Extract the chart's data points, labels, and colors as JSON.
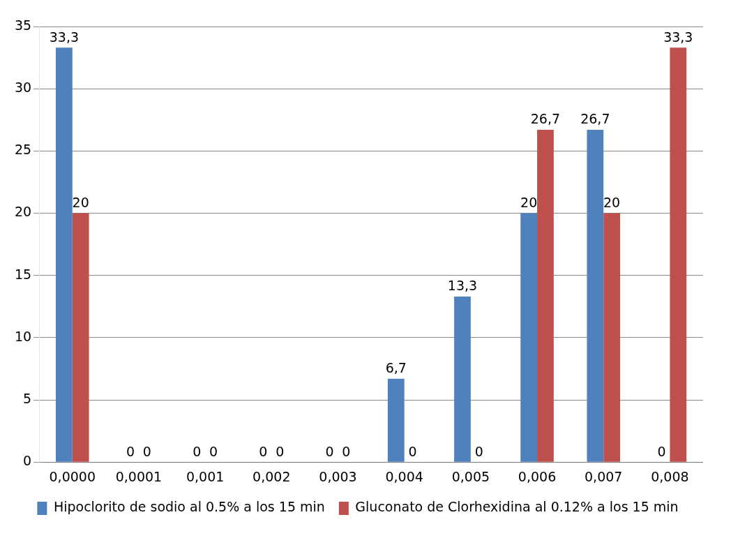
{
  "chart_data": {
    "type": "bar",
    "categories": [
      "0,0000",
      "0,0001",
      "0,001",
      "0,002",
      "0,003",
      "0,004",
      "0,005",
      "0,006",
      "0,007",
      "0,008"
    ],
    "series": [
      {
        "name": "Hipoclorito de sodio al 0.5% a los 15 min",
        "color": "#4f81bd",
        "values": [
          33.3,
          0,
          0,
          0,
          0,
          6.7,
          13.3,
          20,
          26.7,
          0
        ],
        "value_labels": [
          "33,3",
          "0",
          "0",
          "0",
          "0",
          "6,7",
          "13,3",
          "20",
          "26,7",
          "0"
        ]
      },
      {
        "name": "Gluconato de Clorhexidina al 0.12% a los 15 min",
        "color": "#c0504d",
        "values": [
          20,
          0,
          0,
          0,
          0,
          0,
          0,
          26.7,
          20,
          33.3
        ],
        "value_labels": [
          "20",
          "0",
          "0",
          "0",
          "0",
          "0",
          "0",
          "26,7",
          "20",
          "33,3"
        ]
      }
    ],
    "ylim": [
      0,
      35
    ],
    "yticks": [
      0,
      5,
      10,
      15,
      20,
      25,
      30,
      35
    ],
    "grid": "y",
    "legend": "bottom"
  }
}
